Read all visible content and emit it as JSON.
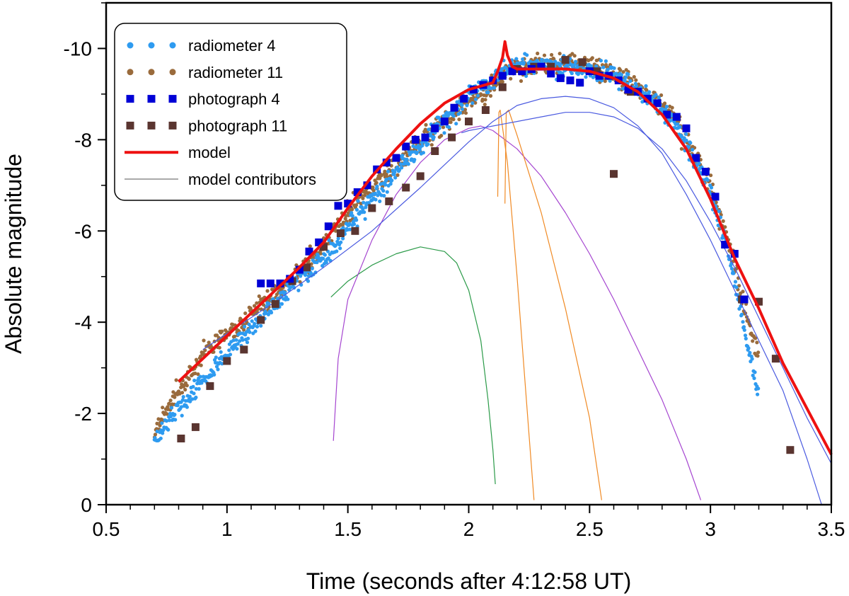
{
  "chart_data": {
    "type": "scatter",
    "xlabel": "Time (seconds after 4:12:58 UT)",
    "ylabel": "Absolute magnitude",
    "xlim": [
      0.5,
      3.5
    ],
    "ylim": [
      0,
      -11
    ],
    "y_inverted": true,
    "grid": false,
    "legend_position": "top-left",
    "x_ticks": [
      0.5,
      1,
      1.5,
      2,
      2.5,
      3,
      3.5
    ],
    "x_tick_labels": [
      "0.5",
      "1",
      "1.5",
      "2",
      "2.5",
      "3",
      "3.5"
    ],
    "y_ticks": [
      0,
      -2,
      -4,
      -6,
      -8,
      -10
    ],
    "y_tick_labels": [
      "0",
      "-2",
      "-4",
      "-6",
      "-8",
      "-10"
    ],
    "legend": [
      {
        "label": "radiometer 4",
        "color": "#2e9bf0",
        "marker": "dot"
      },
      {
        "label": "radiometer 11",
        "color": "#9a6b3c",
        "marker": "dot"
      },
      {
        "label": "photograph 4",
        "color": "#0000d6",
        "marker": "square"
      },
      {
        "label": "photograph 11",
        "color": "#5a3530",
        "marker": "square"
      },
      {
        "label": "model",
        "color": "#ee1111",
        "marker": "line-thick"
      },
      {
        "label": "model contributors",
        "color": "#777777",
        "marker": "line-thin"
      }
    ],
    "series": [
      {
        "name": "radiometer 11",
        "kind": "dense-scatter",
        "color": "#9a6b3c",
        "x": [
          0.7,
          0.75,
          0.8,
          0.85,
          0.9,
          1.0,
          1.1,
          1.2,
          1.3,
          1.4,
          1.45,
          1.5,
          1.6,
          1.7,
          1.8,
          1.9,
          2.0,
          2.05,
          2.1,
          2.15,
          2.2,
          2.3,
          2.4,
          2.5,
          2.6,
          2.7,
          2.8,
          2.85,
          2.9,
          2.95,
          3.0,
          3.05,
          3.1,
          3.15,
          3.2
        ],
        "y": [
          -1.6,
          -2.1,
          -2.5,
          -2.9,
          -3.3,
          -3.75,
          -4.15,
          -4.6,
          -5.1,
          -5.6,
          -6.1,
          -6.4,
          -6.95,
          -7.45,
          -7.95,
          -8.4,
          -8.85,
          -9.0,
          -9.2,
          -9.5,
          -9.6,
          -9.65,
          -9.7,
          -9.6,
          -9.45,
          -9.15,
          -8.75,
          -8.4,
          -8.0,
          -7.5,
          -6.95,
          -6.2,
          -5.2,
          -4.1,
          -3.2
        ],
        "spread": 0.22
      },
      {
        "name": "radiometer 4",
        "kind": "dense-scatter",
        "color": "#2e9bf0",
        "x": [
          0.7,
          0.75,
          0.8,
          0.85,
          0.9,
          1.0,
          1.1,
          1.2,
          1.3,
          1.4,
          1.45,
          1.5,
          1.6,
          1.7,
          1.8,
          1.9,
          2.0,
          2.05,
          2.1,
          2.15,
          2.2,
          2.3,
          2.4,
          2.5,
          2.6,
          2.7,
          2.8,
          2.85,
          2.9,
          2.95,
          3.0,
          3.05,
          3.1,
          3.15,
          3.2
        ],
        "y": [
          -1.4,
          -1.8,
          -2.1,
          -2.4,
          -2.75,
          -3.3,
          -3.85,
          -4.4,
          -4.95,
          -5.4,
          -5.7,
          -6.1,
          -6.7,
          -7.3,
          -7.85,
          -8.4,
          -8.95,
          -9.1,
          -9.3,
          -9.55,
          -9.6,
          -9.65,
          -9.65,
          -9.55,
          -9.4,
          -9.1,
          -8.7,
          -8.35,
          -7.9,
          -7.4,
          -6.85,
          -6.0,
          -4.9,
          -3.6,
          -2.4
        ],
        "spread": 0.2
      },
      {
        "name": "photograph 4",
        "kind": "square",
        "color": "#0000d6",
        "x": [
          1.14,
          1.18,
          1.22,
          1.26,
          1.3,
          1.34,
          1.38,
          1.42,
          1.46,
          1.5,
          1.54,
          1.58,
          1.62,
          1.66,
          1.7,
          1.74,
          1.78,
          1.82,
          1.86,
          1.9,
          1.94,
          1.98,
          2.02,
          2.06,
          2.1,
          2.14,
          2.18,
          2.22,
          2.26,
          2.3,
          2.34,
          2.38,
          2.42,
          2.46,
          2.5,
          2.54,
          2.58,
          2.62,
          2.66,
          2.7,
          2.74,
          2.78,
          2.82,
          2.86,
          2.9,
          2.94,
          2.98,
          3.02,
          3.06,
          3.1,
          3.14
        ],
        "y": [
          -4.85,
          -4.85,
          -4.85,
          -4.95,
          -5.15,
          -5.55,
          -5.75,
          -6.1,
          -6.55,
          -6.6,
          -6.85,
          -7.0,
          -7.35,
          -7.5,
          -7.6,
          -7.85,
          -8.0,
          -8.05,
          -8.25,
          -8.4,
          -8.7,
          -8.9,
          -9.1,
          -9.2,
          -9.3,
          -9.4,
          -9.5,
          -9.5,
          -9.55,
          -9.6,
          -9.45,
          -9.35,
          -9.3,
          -9.25,
          -9.5,
          -9.4,
          -9.4,
          -9.3,
          -9.1,
          -9.05,
          -8.9,
          -8.8,
          -8.55,
          -8.5,
          -8.25,
          -7.6,
          -7.3,
          -6.75,
          -5.7,
          -5.5,
          -4.5
        ]
      },
      {
        "name": "photograph 11",
        "kind": "square",
        "color": "#5a3530",
        "x": [
          0.81,
          0.87,
          0.93,
          1.0,
          1.07,
          1.14,
          1.2,
          1.27,
          1.33,
          1.4,
          1.47,
          1.53,
          1.6,
          1.67,
          1.74,
          1.8,
          1.86,
          1.93,
          2.0,
          2.07,
          2.14,
          2.2,
          2.27,
          2.34,
          2.4,
          2.47,
          2.53,
          2.6,
          2.67,
          3.13,
          3.2,
          3.27,
          3.33
        ],
        "y": [
          -1.45,
          -1.7,
          -2.6,
          -3.15,
          -3.4,
          -4.05,
          -4.4,
          -4.9,
          -5.2,
          -5.65,
          -5.95,
          -6.0,
          -6.5,
          -6.65,
          -6.95,
          -7.2,
          -7.75,
          -8.05,
          -8.4,
          -8.65,
          -9.15,
          -9.55,
          -9.6,
          -9.6,
          -9.75,
          -9.7,
          -9.5,
          -7.25,
          -9.05,
          -4.5,
          -4.45,
          -3.2,
          -1.2
        ]
      },
      {
        "name": "model",
        "kind": "line",
        "color": "#ee1111",
        "width": 4,
        "x": [
          0.8,
          0.9,
          1.0,
          1.1,
          1.2,
          1.3,
          1.4,
          1.5,
          1.6,
          1.7,
          1.8,
          1.9,
          2.0,
          2.1,
          2.12,
          2.14,
          2.15,
          2.16,
          2.18,
          2.2,
          2.3,
          2.4,
          2.5,
          2.6,
          2.7,
          2.8,
          2.9,
          3.0,
          3.1,
          3.2,
          3.3,
          3.4,
          3.5
        ],
        "y": [
          -2.7,
          -3.2,
          -3.7,
          -4.2,
          -4.7,
          -5.2,
          -5.75,
          -6.5,
          -7.2,
          -7.8,
          -8.35,
          -8.8,
          -9.1,
          -9.25,
          -9.5,
          -9.8,
          -10.15,
          -9.85,
          -9.6,
          -9.55,
          -9.55,
          -9.55,
          -9.5,
          -9.35,
          -9.05,
          -8.55,
          -7.8,
          -6.7,
          -5.4,
          -4.3,
          -3.1,
          -2.1,
          -1.1
        ]
      },
      {
        "name": "contributor green",
        "kind": "line",
        "color": "#2a9a48",
        "width": 1.2,
        "x": [
          1.43,
          1.5,
          1.6,
          1.7,
          1.8,
          1.9,
          1.95,
          2.0,
          2.05,
          2.08,
          2.1,
          2.11
        ],
        "y": [
          -4.55,
          -4.9,
          -5.25,
          -5.5,
          -5.65,
          -5.55,
          -5.3,
          -4.7,
          -3.6,
          -2.3,
          -1.2,
          -0.45
        ]
      },
      {
        "name": "contributor purple",
        "kind": "line",
        "color": "#a545d0",
        "width": 1.2,
        "x": [
          1.44,
          1.46,
          1.5,
          1.6,
          1.7,
          1.8,
          1.9,
          2.0,
          2.05,
          2.1,
          2.2,
          2.3,
          2.4,
          2.5,
          2.6,
          2.7,
          2.8,
          2.9,
          2.96
        ],
        "y": [
          -1.4,
          -3.2,
          -4.5,
          -5.8,
          -6.8,
          -7.5,
          -8.0,
          -8.25,
          -8.3,
          -8.2,
          -7.8,
          -7.2,
          -6.4,
          -5.5,
          -4.5,
          -3.4,
          -2.3,
          -1.0,
          -0.1
        ]
      },
      {
        "name": "contributor orange 1",
        "kind": "line",
        "color": "#f08a24",
        "width": 1.2,
        "x": [
          2.12,
          2.125,
          2.13,
          2.16,
          2.2,
          2.25,
          2.27
        ],
        "y": [
          -6.75,
          -8.6,
          -8.65,
          -7.5,
          -5.0,
          -1.5,
          -0.1
        ]
      },
      {
        "name": "contributor orange 2",
        "kind": "line",
        "color": "#f08a24",
        "width": 1.2,
        "x": [
          2.15,
          2.155,
          2.165,
          2.2,
          2.3,
          2.4,
          2.5,
          2.55
        ],
        "y": [
          -6.6,
          -8.6,
          -8.65,
          -8.1,
          -6.4,
          -4.3,
          -1.9,
          -0.1
        ]
      },
      {
        "name": "contributor blue 1",
        "kind": "line",
        "color": "#4a5ae0",
        "width": 1.2,
        "x": [
          0.9,
          1.0,
          1.2,
          1.4,
          1.6,
          1.8,
          2.0,
          2.1,
          2.2,
          2.3,
          2.4,
          2.5,
          2.6,
          2.7,
          2.8,
          2.9,
          3.0,
          3.1,
          3.2,
          3.3,
          3.4,
          3.46
        ],
        "y": [
          -3.4,
          -3.75,
          -4.45,
          -5.2,
          -6.0,
          -6.95,
          -7.95,
          -8.4,
          -8.75,
          -8.9,
          -8.95,
          -8.9,
          -8.7,
          -8.3,
          -7.7,
          -6.8,
          -5.8,
          -4.7,
          -3.6,
          -2.5,
          -1.0,
          0.0
        ]
      },
      {
        "name": "contributor blue 2",
        "kind": "line",
        "color": "#4a5ae0",
        "width": 1.2,
        "x": [
          1.97,
          2.0,
          2.05,
          2.1,
          2.15,
          2.2,
          2.3,
          2.4,
          2.5,
          2.6,
          2.7,
          2.8,
          2.9,
          3.0,
          3.1,
          3.2,
          3.3,
          3.4,
          3.5
        ],
        "y": [
          -8.15,
          -8.2,
          -8.25,
          -8.3,
          -8.35,
          -8.4,
          -8.5,
          -8.6,
          -8.6,
          -8.5,
          -8.25,
          -7.8,
          -7.1,
          -6.2,
          -5.2,
          -4.1,
          -3.0,
          -1.9,
          -0.9
        ]
      }
    ]
  }
}
